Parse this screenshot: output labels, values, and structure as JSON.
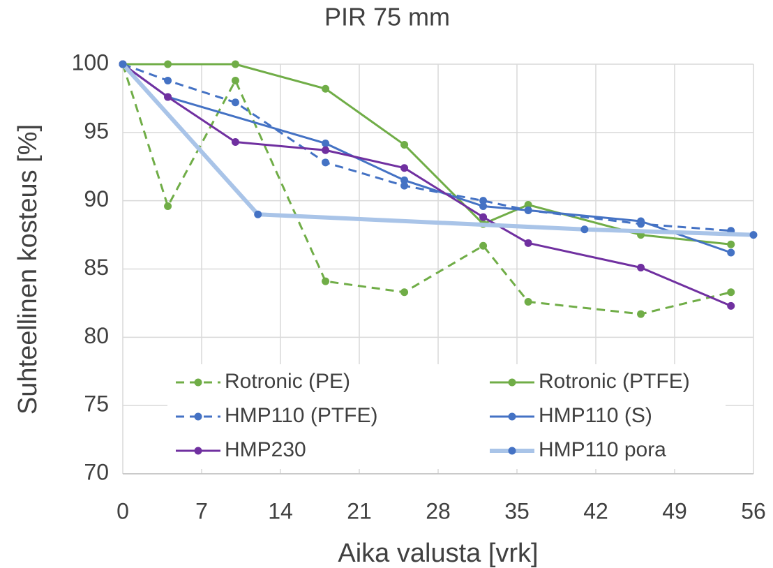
{
  "chart_data": {
    "type": "line",
    "title": "PIR 75 mm",
    "x_label": "Aika valusta [vrk]",
    "y_label": "Suhteellinen kosteus [%]",
    "xlim": [
      0,
      56
    ],
    "xticks": [
      0,
      7,
      14,
      21,
      28,
      35,
      42,
      49,
      56
    ],
    "ylim": [
      70,
      100
    ],
    "yticks": [
      70,
      75,
      80,
      85,
      90,
      95,
      100
    ],
    "grid": true,
    "legend": "inside-bottom",
    "series": [
      {
        "name": "Rotronic (PE)",
        "color": "#70ad47",
        "style": "dashed",
        "x": [
          0,
          4,
          10,
          18,
          25,
          32,
          36,
          46,
          54
        ],
        "values": [
          100,
          89.6,
          98.8,
          84.1,
          83.3,
          86.7,
          82.6,
          81.7,
          83.3
        ]
      },
      {
        "name": "Rotronic (PTFE)",
        "color": "#70ad47",
        "style": "solid",
        "x": [
          0,
          4,
          10,
          18,
          25,
          32,
          36,
          46,
          54
        ],
        "values": [
          100,
          100,
          100,
          98.2,
          94.1,
          88.3,
          89.7,
          87.5,
          86.8
        ]
      },
      {
        "name": "HMP110 (PTFE)",
        "color": "#4472c4",
        "style": "dashed",
        "x": [
          0,
          4,
          10,
          18,
          25,
          32,
          36,
          46,
          54
        ],
        "values": [
          100,
          98.8,
          97.2,
          92.8,
          91.1,
          90.0,
          89.3,
          88.3,
          87.8
        ]
      },
      {
        "name": "HMP110 (S)",
        "color": "#4472c4",
        "style": "solid",
        "x": [
          0,
          4,
          18,
          25,
          32,
          36,
          46,
          54
        ],
        "values": [
          100,
          97.6,
          94.2,
          91.5,
          89.6,
          89.3,
          88.5,
          86.2
        ]
      },
      {
        "name": "HMP230",
        "color": "#7030a0",
        "style": "solid",
        "x": [
          0,
          4,
          10,
          18,
          25,
          32,
          36,
          46,
          54
        ],
        "values": [
          100,
          97.6,
          94.3,
          93.7,
          92.4,
          88.8,
          86.9,
          85.1,
          82.3
        ]
      },
      {
        "name": "HMP110 pora",
        "color": "#4472c4",
        "line_color": "#a9c4e8",
        "style": "thick",
        "x": [
          0,
          12,
          41,
          56
        ],
        "values": [
          100,
          89.0,
          87.9,
          87.5
        ]
      }
    ]
  }
}
